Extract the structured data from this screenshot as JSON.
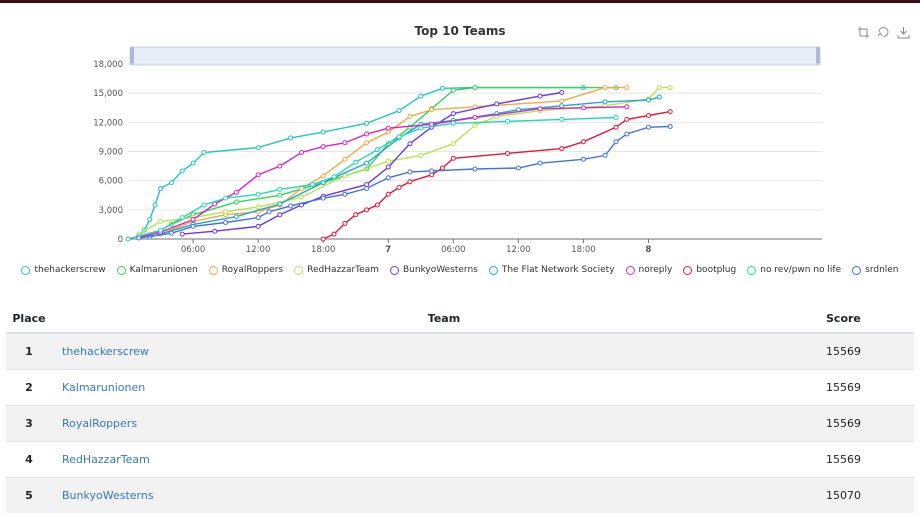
{
  "toolbox": {
    "restore_icon": "restore-icon",
    "zoom_icon": "data-zoom-icon",
    "save_icon": "save-image-icon"
  },
  "chart_data": {
    "type": "line",
    "title": "Top 10 Teams",
    "ylim": [
      0,
      18000
    ],
    "y_ticks": [
      "0",
      "3,000",
      "6,000",
      "9,000",
      "12,000",
      "15,000",
      "18,000"
    ],
    "x_range_hours": [
      0,
      64
    ],
    "x_ticks": [
      {
        "label": "06:00",
        "hour": 6
      },
      {
        "label": "12:00",
        "hour": 12
      },
      {
        "label": "18:00",
        "hour": 18
      },
      {
        "label": "7",
        "hour": 24
      },
      {
        "label": "06:00",
        "hour": 30
      },
      {
        "label": "12:00",
        "hour": 36
      },
      {
        "label": "18:00",
        "hour": 42
      },
      {
        "label": "8",
        "hour": 48
      }
    ],
    "grid": true,
    "legend_position": "bottom",
    "series": [
      {
        "name": "thehackerscrew",
        "color": "#20c5c0",
        "points": [
          [
            0,
            0
          ],
          [
            1,
            300
          ],
          [
            1.5,
            900
          ],
          [
            2,
            2000
          ],
          [
            2.5,
            3500
          ],
          [
            3,
            5200
          ],
          [
            4,
            5800
          ],
          [
            5,
            7000
          ],
          [
            6,
            7800
          ],
          [
            7,
            8900
          ],
          [
            12,
            9400
          ],
          [
            15,
            10400
          ],
          [
            18,
            11000
          ],
          [
            22,
            11900
          ],
          [
            25,
            13200
          ],
          [
            27,
            14700
          ],
          [
            29,
            15500
          ],
          [
            32,
            15569
          ],
          [
            42,
            15569
          ]
        ]
      },
      {
        "name": "Kalmarunionen",
        "color": "#33d45a",
        "points": [
          [
            2,
            300
          ],
          [
            4,
            1500
          ],
          [
            6,
            2500
          ],
          [
            10,
            3800
          ],
          [
            14,
            4500
          ],
          [
            18,
            5800
          ],
          [
            22,
            7200
          ],
          [
            24,
            9800
          ],
          [
            26,
            11500
          ],
          [
            28,
            13400
          ],
          [
            30,
            15300
          ],
          [
            32,
            15569
          ],
          [
            45,
            15569
          ]
        ]
      },
      {
        "name": "RoyalRoppers",
        "color": "#f5a742",
        "points": [
          [
            3,
            500
          ],
          [
            6,
            1800
          ],
          [
            9,
            2500
          ],
          [
            12,
            2800
          ],
          [
            14,
            3500
          ],
          [
            16,
            5200
          ],
          [
            18,
            6500
          ],
          [
            20,
            8200
          ],
          [
            22,
            9900
          ],
          [
            24,
            11000
          ],
          [
            26,
            12600
          ],
          [
            28,
            13300
          ],
          [
            32,
            13600
          ],
          [
            40,
            14200
          ],
          [
            44,
            15569
          ],
          [
            46,
            15569
          ]
        ]
      },
      {
        "name": "RedHazzarTeam",
        "color": "#b7e34b",
        "points": [
          [
            1,
            500
          ],
          [
            3,
            1800
          ],
          [
            6,
            2200
          ],
          [
            9,
            2800
          ],
          [
            12,
            3300
          ],
          [
            16,
            4300
          ],
          [
            20,
            6500
          ],
          [
            24,
            8000
          ],
          [
            27,
            8600
          ],
          [
            30,
            9800
          ],
          [
            32,
            11700
          ],
          [
            34,
            12600
          ],
          [
            38,
            13200
          ],
          [
            44,
            13700
          ],
          [
            48,
            14400
          ],
          [
            49,
            15569
          ],
          [
            50,
            15569
          ]
        ]
      },
      {
        "name": "BunkyoWesterns",
        "color": "#6a3ad4",
        "points": [
          [
            5,
            500
          ],
          [
            8,
            800
          ],
          [
            12,
            1300
          ],
          [
            14,
            2500
          ],
          [
            16,
            3500
          ],
          [
            18,
            4400
          ],
          [
            22,
            5600
          ],
          [
            24,
            7400
          ],
          [
            26,
            9800
          ],
          [
            28,
            11500
          ],
          [
            30,
            12900
          ],
          [
            34,
            13900
          ],
          [
            38,
            14700
          ],
          [
            40,
            15070
          ]
        ]
      },
      {
        "name": "The Flat Network Society",
        "color": "#1da9cf",
        "points": [
          [
            2,
            200
          ],
          [
            6,
            1500
          ],
          [
            10,
            2300
          ],
          [
            14,
            3600
          ],
          [
            18,
            5800
          ],
          [
            22,
            7800
          ],
          [
            25,
            10400
          ],
          [
            27,
            11800
          ],
          [
            30,
            12200
          ],
          [
            34,
            12900
          ],
          [
            36,
            13300
          ],
          [
            40,
            13700
          ],
          [
            44,
            14100
          ],
          [
            48,
            14300
          ],
          [
            49,
            14600
          ]
        ]
      },
      {
        "name": "noreply",
        "color": "#d824c7",
        "points": [
          [
            1,
            200
          ],
          [
            3,
            700
          ],
          [
            6,
            2000
          ],
          [
            8,
            3600
          ],
          [
            10,
            4800
          ],
          [
            12,
            6600
          ],
          [
            14,
            7500
          ],
          [
            16,
            8900
          ],
          [
            18,
            9500
          ],
          [
            20,
            9900
          ],
          [
            22,
            10800
          ],
          [
            24,
            11400
          ],
          [
            28,
            11800
          ],
          [
            32,
            12500
          ],
          [
            38,
            13400
          ],
          [
            42,
            13500
          ],
          [
            46,
            13600
          ]
        ]
      },
      {
        "name": "bootplug",
        "color": "#e3173c",
        "points": [
          [
            18,
            0
          ],
          [
            19,
            500
          ],
          [
            20,
            1600
          ],
          [
            21,
            2500
          ],
          [
            22,
            3000
          ],
          [
            23,
            3500
          ],
          [
            24,
            4600
          ],
          [
            25,
            5300
          ],
          [
            26,
            5900
          ],
          [
            28,
            6600
          ],
          [
            29,
            7300
          ],
          [
            30,
            8300
          ],
          [
            35,
            8800
          ],
          [
            40,
            9300
          ],
          [
            42,
            10000
          ],
          [
            45,
            11500
          ],
          [
            46,
            12300
          ],
          [
            48,
            12700
          ],
          [
            50,
            13100
          ]
        ]
      },
      {
        "name": "no rev/pwn no life",
        "color": "#23d6b5",
        "points": [
          [
            1,
            300
          ],
          [
            3,
            900
          ],
          [
            5,
            2200
          ],
          [
            7,
            3500
          ],
          [
            9,
            4200
          ],
          [
            12,
            4600
          ],
          [
            14,
            5100
          ],
          [
            17,
            5600
          ],
          [
            19,
            6400
          ],
          [
            21,
            7900
          ],
          [
            23,
            9200
          ],
          [
            25,
            10500
          ],
          [
            27,
            11400
          ],
          [
            30,
            11900
          ],
          [
            35,
            12100
          ],
          [
            40,
            12300
          ],
          [
            45,
            12500
          ]
        ]
      },
      {
        "name": "srdnlen",
        "color": "#4272d8",
        "points": [
          [
            1,
            100
          ],
          [
            4,
            600
          ],
          [
            6,
            1300
          ],
          [
            9,
            1700
          ],
          [
            12,
            2200
          ],
          [
            13,
            2800
          ],
          [
            15,
            3400
          ],
          [
            18,
            4200
          ],
          [
            20,
            4600
          ],
          [
            22,
            5200
          ],
          [
            24,
            6300
          ],
          [
            26,
            6900
          ],
          [
            28,
            7000
          ],
          [
            32,
            7200
          ],
          [
            36,
            7300
          ],
          [
            38,
            7800
          ],
          [
            42,
            8200
          ],
          [
            44,
            8600
          ],
          [
            45,
            10000
          ],
          [
            46,
            10800
          ],
          [
            48,
            11500
          ],
          [
            50,
            11569
          ]
        ]
      }
    ]
  },
  "table": {
    "headers": {
      "place": "Place",
      "team": "Team",
      "score": "Score"
    },
    "rows": [
      {
        "place": "1",
        "team": "thehackerscrew",
        "score": "15569"
      },
      {
        "place": "2",
        "team": "Kalmarunionen",
        "score": "15569"
      },
      {
        "place": "3",
        "team": "RoyalRoppers",
        "score": "15569"
      },
      {
        "place": "4",
        "team": "RedHazzarTeam",
        "score": "15569"
      },
      {
        "place": "5",
        "team": "BunkyoWesterns",
        "score": "15070"
      }
    ]
  }
}
